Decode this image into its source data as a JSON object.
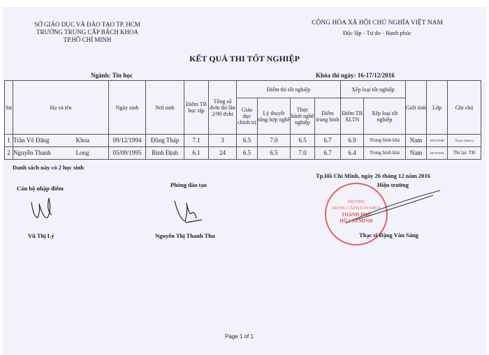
{
  "header": {
    "left": [
      "SỞ GIÁO DỤC VÀ ĐÀO TẠO TP. HCM",
      "TRƯỜNG TRUNG CẤP BÁCH KHOA",
      "TP.HỒ CHÍ MINH"
    ],
    "right": [
      "CỘNG HÒA XÃ HỘI CHỦ NGHĨA VIỆT NAM",
      "Độc lập - Tự do - Hạnh phúc"
    ]
  },
  "title": "KẾT QUẢ THI TỐT NGHIỆP",
  "major": "Ngành: Tin học",
  "exam_date": "Khóa thi ngày: 16-17/12/2016",
  "table": {
    "headers": {
      "stt": "Stt",
      "name": "Họ và tên",
      "dob": "Ngày sinh",
      "pob": "Nơi sinh",
      "gpa": "Điểm TB học tập",
      "credits": "Tổng số đvht thi lần 2/90 đvht",
      "exam_group": "Điểm thi tốt nghiệp",
      "politics": "Giáo dục chính trị",
      "theory": "Lý thuyết tổng hợp nghề",
      "practice": "Thực hành nghề nghiệp",
      "avg": "Điểm trung bình",
      "rank_group": "Xếp loại tốt nghiệp",
      "xltn": "Điểm TB XLTN",
      "rank": "Xếp loại tốt nghiệp",
      "gender": "Giới tính",
      "class": "Lớp",
      "note": "Ghi chú"
    },
    "rows": [
      {
        "stt": "1",
        "first": "Trần Võ Đăng",
        "last": "Khoa",
        "dob": "09/12/1994",
        "pob": "Đồng Tháp",
        "gpa": "7.1",
        "credits": "3",
        "politics": "6.5",
        "theory": "7.0",
        "practice": "6.5",
        "avg": "6.7",
        "xltn": "6.9",
        "rank": "Trung bình khá",
        "gender": "Nam",
        "class": "ASCNTT8B",
        "note": "Thi lại: Chính trị"
      },
      {
        "stt": "2",
        "first": "Nguyễn Thanh",
        "last": "Long",
        "dob": "05/09/1995",
        "pob": "Bình Định",
        "gpa": "6.1",
        "credits": "24",
        "politics": "6.5",
        "theory": "6.5",
        "practice": "7.0",
        "avg": "6.7",
        "xltn": "6.4",
        "rank": "Trung bình khá",
        "gender": "Nam",
        "class": "ASCNTT8A",
        "note": "Thi lại: TH"
      }
    ]
  },
  "summary": "Danh sách này có 2 học sinh",
  "signatures": {
    "entry_title": "Cán bộ nhập điểm",
    "entry_name": "Vũ Thị Lý",
    "training_title": "Phòng đào tạo",
    "training_name": "Nguyễn Thị Thanh Thu",
    "place_date": "Tp.Hồ Chí Minh, ngày 26 tháng 12 năm 2016",
    "principal_title": "Hiệu trưởng",
    "principal_name": "Thạc sĩ Đặng Văn Sáng"
  },
  "stamp": [
    "TRƯỜNG",
    "TRUNG CẤP BÁCH KHOA",
    "THÀNH PHỐ",
    "HỒ CHÍ MINH"
  ],
  "footer": "Page 1 of 1"
}
